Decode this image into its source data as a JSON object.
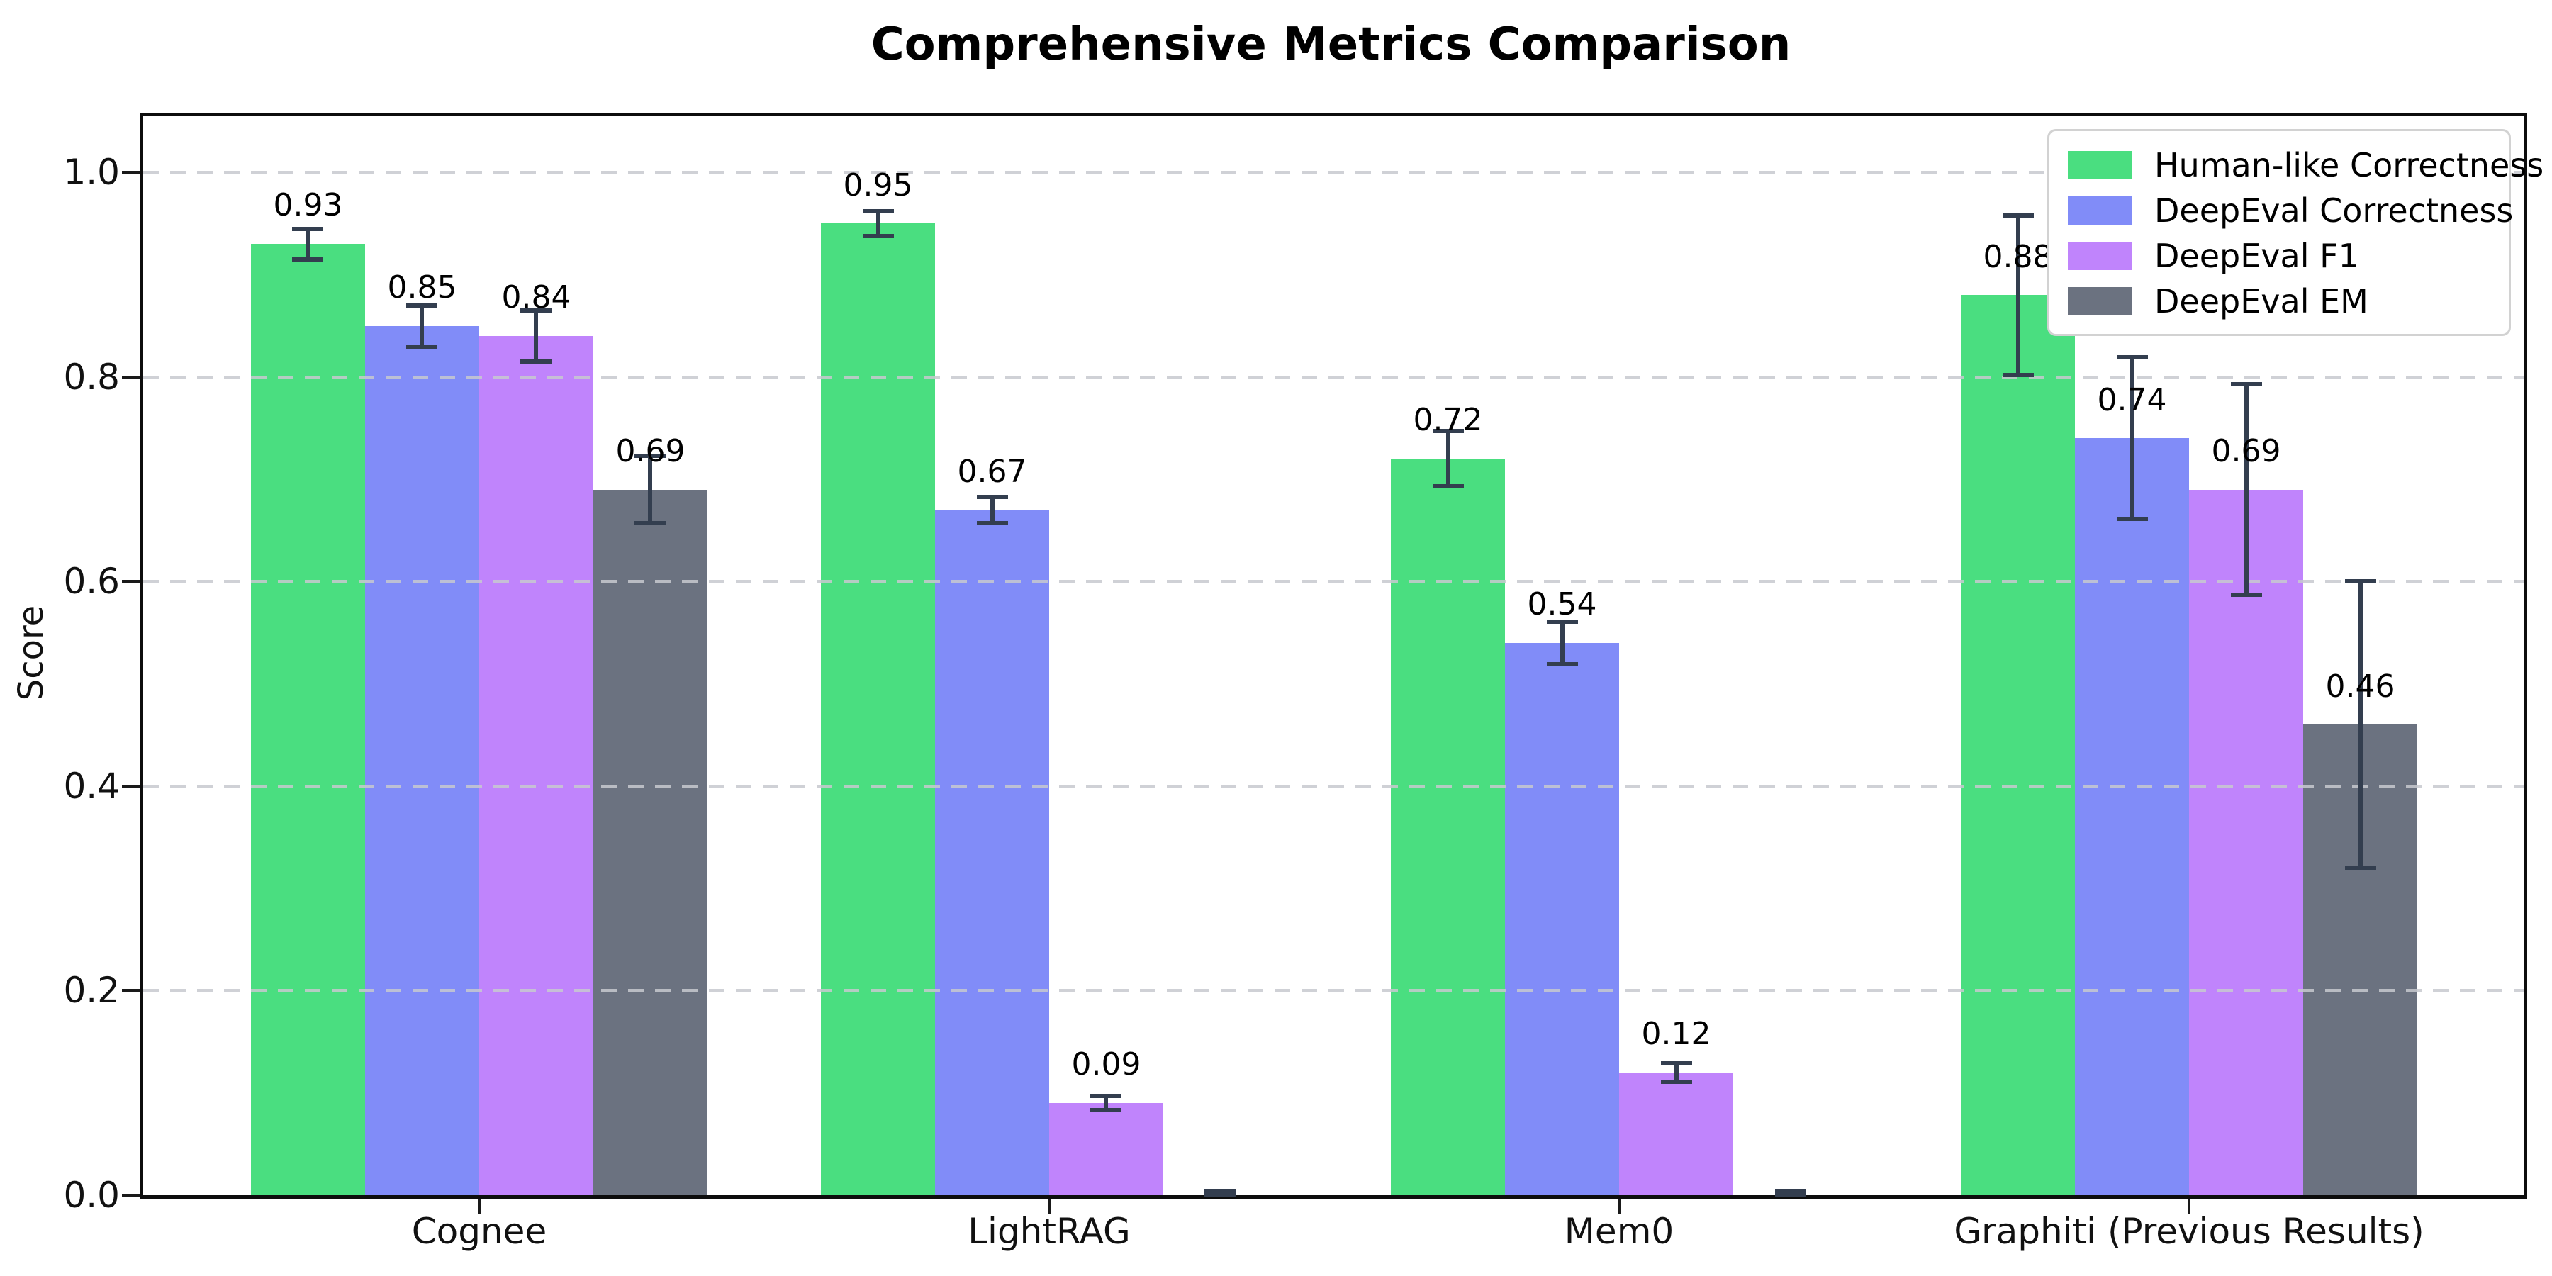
{
  "chart_data": {
    "type": "bar",
    "title": "Comprehensive Metrics Comparison",
    "ylabel": "Score",
    "xlabel": "",
    "categories": [
      "Cognee",
      "LightRAG",
      "Mem0",
      "Graphiti (Previous Results)"
    ],
    "series": [
      {
        "name": "Human-like Correctness",
        "color": "#4ade80",
        "values": [
          0.93,
          0.95,
          0.72,
          0.88
        ],
        "errors": [
          0.015,
          0.012,
          0.027,
          0.078
        ],
        "labels": [
          "0.93",
          "0.95",
          "0.72",
          "0.88"
        ]
      },
      {
        "name": "DeepEval Correctness",
        "color": "#818cf8",
        "values": [
          0.85,
          0.67,
          0.54,
          0.74
        ],
        "errors": [
          0.02,
          0.013,
          0.021,
          0.079
        ],
        "labels": [
          "0.85",
          "0.67",
          "0.54",
          "0.74"
        ]
      },
      {
        "name": "DeepEval F1",
        "color": "#c084fc",
        "values": [
          0.84,
          0.09,
          0.12,
          0.69
        ],
        "errors": [
          0.025,
          0.007,
          0.009,
          0.103
        ],
        "labels": [
          "0.84",
          "0.09",
          "0.12",
          "0.69"
        ]
      },
      {
        "name": "DeepEval EM",
        "color": "#6b7280",
        "values": [
          0.69,
          0.0,
          0.0,
          0.46
        ],
        "errors": [
          0.033,
          0.004,
          0.004,
          0.14
        ],
        "labels": [
          "0.69",
          null,
          null,
          "0.46"
        ]
      }
    ],
    "yticks": [
      "0.0",
      "0.2",
      "0.4",
      "0.6",
      "0.8",
      "1.0"
    ],
    "ylim": [
      0,
      1.055
    ],
    "grid": "horizontal-dashed",
    "grid_color": "#c7c9cf",
    "error_bar_color": "#333e4f",
    "legend_position": "upper-right"
  }
}
